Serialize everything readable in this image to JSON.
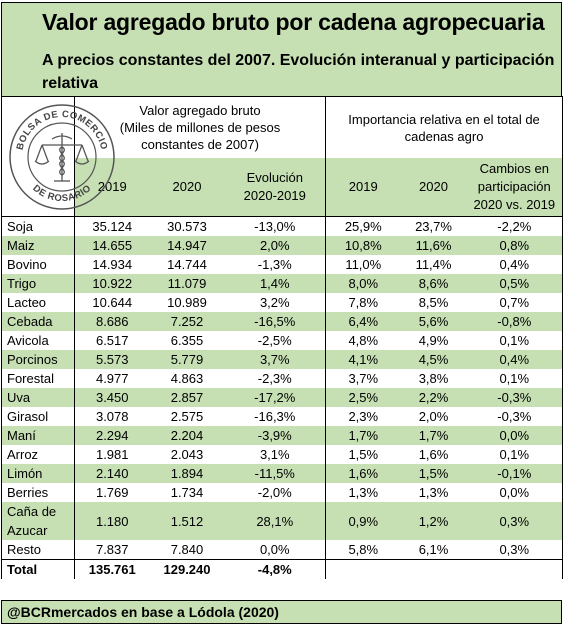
{
  "title": "Valor agregado bruto por cadena agropecuaria",
  "subtitle": "A precios constantes del 2007. Evolución interanual y participación relativa",
  "logo": {
    "text": "BOLSA DE COMERCIO DE ROSARIO",
    "icon": "scales-caduceus-icon"
  },
  "group1": {
    "line1": "Valor agregado bruto",
    "line2": "(Miles de millones de pesos",
    "line3": "constantes de 2007)"
  },
  "group2": {
    "line1": "Importancia relativa en el total de",
    "line2": "cadenas agro"
  },
  "columns": {
    "y2019": "2019",
    "y2020": "2020",
    "evol1": "Evolución",
    "evol2": "2020-2019",
    "p2019": "2019",
    "p2020": "2020",
    "chg1": "Cambios en",
    "chg2": "participación",
    "chg3": "2020 vs. 2019"
  },
  "rows": [
    {
      "name": "Soja",
      "v2019": "35.124",
      "v2020": "30.573",
      "evol": "-13,0%",
      "p2019": "25,9%",
      "p2020": "23,7%",
      "chg": "-2,2%"
    },
    {
      "name": "Maiz",
      "v2019": "14.655",
      "v2020": "14.947",
      "evol": "2,0%",
      "p2019": "10,8%",
      "p2020": "11,6%",
      "chg": "0,8%"
    },
    {
      "name": "Bovino",
      "v2019": "14.934",
      "v2020": "14.744",
      "evol": "-1,3%",
      "p2019": "11,0%",
      "p2020": "11,4%",
      "chg": "0,4%"
    },
    {
      "name": "Trigo",
      "v2019": "10.922",
      "v2020": "11.079",
      "evol": "1,4%",
      "p2019": "8,0%",
      "p2020": "8,6%",
      "chg": "0,5%"
    },
    {
      "name": "Lacteo",
      "v2019": "10.644",
      "v2020": "10.989",
      "evol": "3,2%",
      "p2019": "7,8%",
      "p2020": "8,5%",
      "chg": "0,7%"
    },
    {
      "name": "Cebada",
      "v2019": "8.686",
      "v2020": "7.252",
      "evol": "-16,5%",
      "p2019": "6,4%",
      "p2020": "5,6%",
      "chg": "-0,8%"
    },
    {
      "name": "Avicola",
      "v2019": "6.517",
      "v2020": "6.355",
      "evol": "-2,5%",
      "p2019": "4,8%",
      "p2020": "4,9%",
      "chg": "0,1%"
    },
    {
      "name": "Porcinos",
      "v2019": "5.573",
      "v2020": "5.779",
      "evol": "3,7%",
      "p2019": "4,1%",
      "p2020": "4,5%",
      "chg": "0,4%"
    },
    {
      "name": "Forestal",
      "v2019": "4.977",
      "v2020": "4.863",
      "evol": "-2,3%",
      "p2019": "3,7%",
      "p2020": "3,8%",
      "chg": "0,1%"
    },
    {
      "name": "Uva",
      "v2019": "3.450",
      "v2020": "2.857",
      "evol": "-17,2%",
      "p2019": "2,5%",
      "p2020": "2,2%",
      "chg": "-0,3%"
    },
    {
      "name": "Girasol",
      "v2019": "3.078",
      "v2020": "2.575",
      "evol": "-16,3%",
      "p2019": "2,3%",
      "p2020": "2,0%",
      "chg": "-0,3%"
    },
    {
      "name": "Maní",
      "v2019": "2.294",
      "v2020": "2.204",
      "evol": "-3,9%",
      "p2019": "1,7%",
      "p2020": "1,7%",
      "chg": "0,0%"
    },
    {
      "name": "Arroz",
      "v2019": "1.981",
      "v2020": "2.043",
      "evol": "3,1%",
      "p2019": "1,5%",
      "p2020": "1,6%",
      "chg": "0,1%"
    },
    {
      "name": "Limón",
      "v2019": "2.140",
      "v2020": "1.894",
      "evol": "-11,5%",
      "p2019": "1,6%",
      "p2020": "1,5%",
      "chg": "-0,1%"
    },
    {
      "name": "Berries",
      "v2019": "1.769",
      "v2020": "1.734",
      "evol": "-2,0%",
      "p2019": "1,3%",
      "p2020": "1,3%",
      "chg": "0,0%"
    },
    {
      "name1": "Caña de",
      "name2": "Azucar",
      "v2019": "1.180",
      "v2020": "1.512",
      "evol": "28,1%",
      "p2019": "0,9%",
      "p2020": "1,2%",
      "chg": "0,3%"
    },
    {
      "name": "Resto",
      "v2019": "7.837",
      "v2020": "7.840",
      "evol": "0,0%",
      "p2019": "5,8%",
      "p2020": "6,1%",
      "chg": "0,3%"
    }
  ],
  "total": {
    "name": "Total",
    "v2019": "135.761",
    "v2020": "129.240",
    "evol": "-4,8%"
  },
  "footer": "@BCRmercados en base a Lódola (2020)",
  "colors": {
    "band": "#c6e0b4",
    "white": "#ffffff",
    "border": "#000000"
  }
}
